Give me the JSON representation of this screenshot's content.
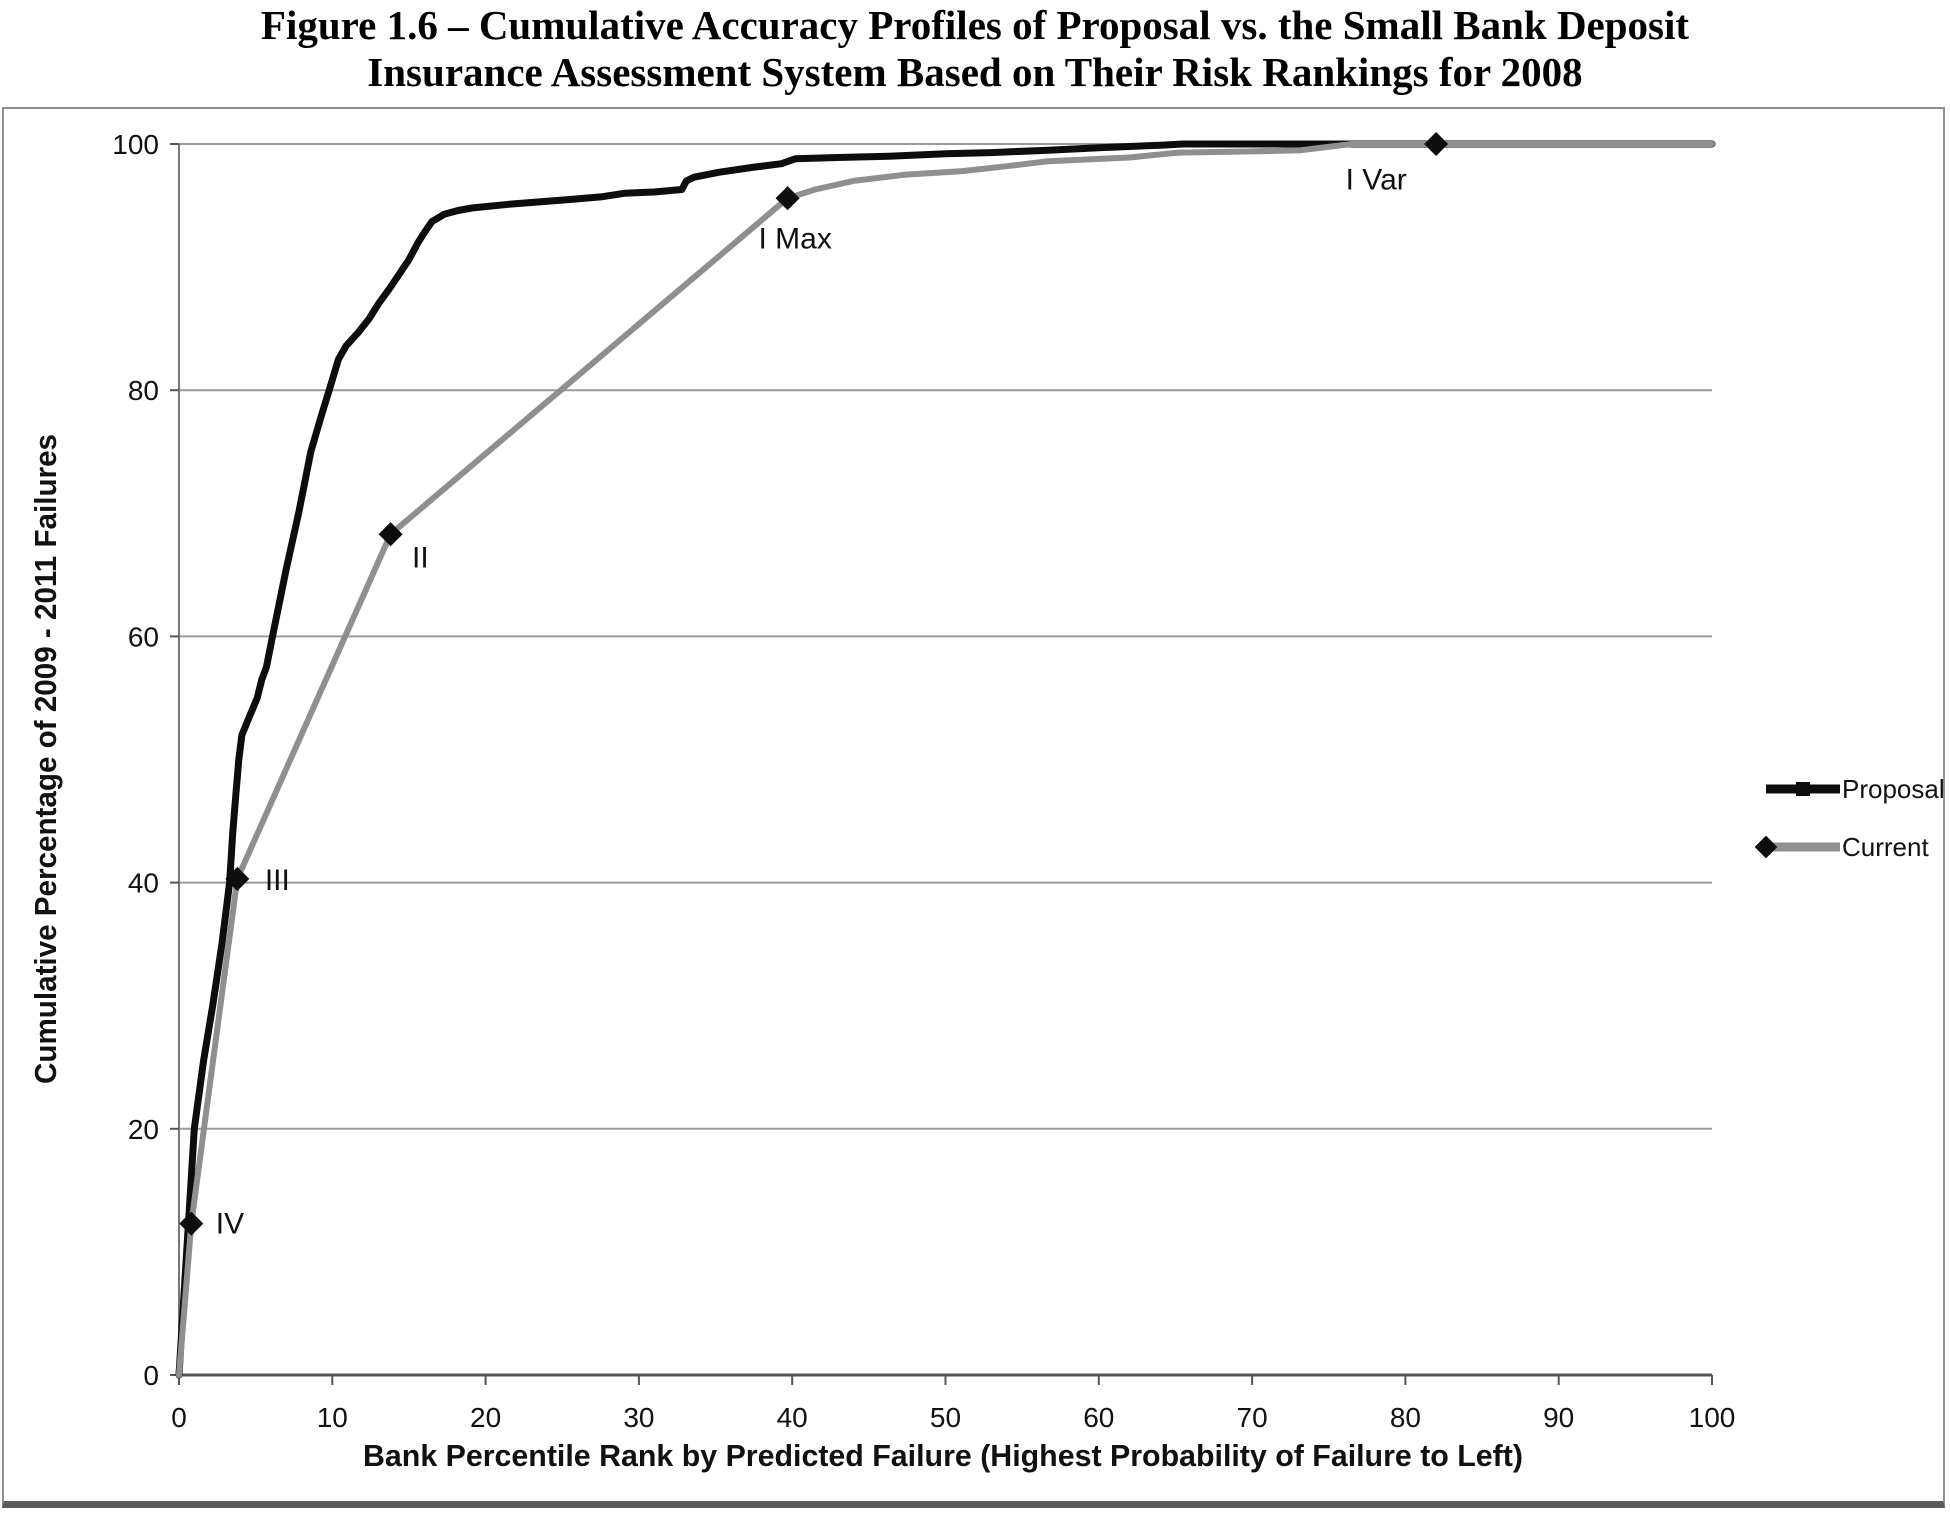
{
  "figure": {
    "title_line1": "Figure 1.6 – Cumulative Accuracy Profiles of Proposal vs. the Small Bank Deposit",
    "title_line2": "Insurance Assessment System Based on Their Risk Rankings for 2008"
  },
  "chart_data": {
    "type": "line",
    "title": "Figure 1.6 – Cumulative Accuracy Profiles of Proposal vs. the Small Bank Deposit Insurance Assessment System Based on Their Risk Rankings for 2008",
    "xlabel": "Bank Percentile Rank by Predicted Failure (Highest Probability of Failure to Left)",
    "ylabel": "Cumulative Percentage of 2009 - 2011 Failures",
    "xlim": [
      0,
      100
    ],
    "ylim": [
      0,
      100
    ],
    "x_ticks": [
      0,
      10,
      20,
      30,
      40,
      50,
      60,
      70,
      80,
      90,
      100
    ],
    "y_ticks": [
      0,
      20,
      40,
      60,
      80,
      100
    ],
    "grid": "horizontal-only",
    "legend_position": "right-outside",
    "colors": {
      "proposal": "#0d0d0d",
      "current": "#8f8f8f",
      "grid": "#9a9a9a",
      "axis": "#555555",
      "marker": "#0d0d0d"
    },
    "series": [
      {
        "name": "Proposal",
        "color_key": "proposal",
        "stroke_width": 7,
        "marker": "none",
        "points": [
          [
            0,
            0
          ],
          [
            0.3,
            6
          ],
          [
            0.6,
            12
          ],
          [
            1,
            20
          ],
          [
            1.6,
            25.5
          ],
          [
            2.2,
            30
          ],
          [
            2.8,
            35
          ],
          [
            3.3,
            40
          ],
          [
            3.5,
            44
          ],
          [
            3.7,
            47
          ],
          [
            3.9,
            50
          ],
          [
            4.1,
            52
          ],
          [
            4.6,
            53.5
          ],
          [
            5.1,
            55
          ],
          [
            5.4,
            56.5
          ],
          [
            5.7,
            57.5
          ],
          [
            6.1,
            60
          ],
          [
            7,
            65.5
          ],
          [
            7.8,
            70
          ],
          [
            8.6,
            75
          ],
          [
            9.3,
            78
          ],
          [
            9.8,
            80
          ],
          [
            10.4,
            82.5
          ],
          [
            10.9,
            83.6
          ],
          [
            11.7,
            84.7
          ],
          [
            12.4,
            85.8
          ],
          [
            13,
            87
          ],
          [
            13.7,
            88.2
          ],
          [
            14.3,
            89.3
          ],
          [
            15,
            90.6
          ],
          [
            15.6,
            92
          ],
          [
            16,
            92.8
          ],
          [
            16.5,
            93.7
          ],
          [
            17.3,
            94.3
          ],
          [
            18.2,
            94.6
          ],
          [
            19.1,
            94.8
          ],
          [
            21.5,
            95.1
          ],
          [
            23.5,
            95.3
          ],
          [
            25.6,
            95.5
          ],
          [
            27.5,
            95.7
          ],
          [
            29.1,
            96
          ],
          [
            31,
            96.1
          ],
          [
            32.8,
            96.3
          ],
          [
            33.1,
            97
          ],
          [
            33.6,
            97.3
          ],
          [
            35.2,
            97.7
          ],
          [
            37.4,
            98.1
          ],
          [
            39.3,
            98.4
          ],
          [
            40.2,
            98.8
          ],
          [
            43,
            98.9
          ],
          [
            46.3,
            99
          ],
          [
            50,
            99.2
          ],
          [
            53,
            99.3
          ],
          [
            56.7,
            99.5
          ],
          [
            60,
            99.7
          ],
          [
            64,
            99.9
          ],
          [
            65.5,
            100
          ],
          [
            100,
            100
          ]
        ]
      },
      {
        "name": "Current",
        "color_key": "current",
        "stroke_width": 6,
        "marker": "diamond",
        "points": [
          [
            0,
            0
          ],
          [
            0.8,
            12.3
          ],
          [
            3.8,
            40.3
          ],
          [
            13.8,
            68.3
          ],
          [
            39.7,
            95.6
          ],
          [
            41.5,
            96.3
          ],
          [
            44,
            97
          ],
          [
            47.3,
            97.5
          ],
          [
            51.1,
            97.8
          ],
          [
            54,
            98.2
          ],
          [
            56.7,
            98.6
          ],
          [
            62,
            98.9
          ],
          [
            65.2,
            99.3
          ],
          [
            70,
            99.4
          ],
          [
            73.2,
            99.5
          ],
          [
            76.5,
            100
          ],
          [
            100,
            100
          ]
        ],
        "marker_points": [
          {
            "x": 0.8,
            "y": 12.3,
            "label": "IV"
          },
          {
            "x": 3.8,
            "y": 40.3,
            "label": "III"
          },
          {
            "x": 13.8,
            "y": 68.3,
            "label": "II"
          },
          {
            "x": 39.7,
            "y": 95.6,
            "label": "I Max"
          },
          {
            "x": 82,
            "y": 100,
            "label": "I Var"
          }
        ]
      }
    ],
    "point_labels": [
      {
        "text": "IV",
        "x": 2.4,
        "y": 11.5
      },
      {
        "text": "III",
        "x": 5.6,
        "y": 39.4
      },
      {
        "text": "II",
        "x": 15.2,
        "y": 65.6
      },
      {
        "text": "I Max",
        "x": 37.8,
        "y": 91.5
      },
      {
        "text": "I Var",
        "x": 76.1,
        "y": 96.3
      }
    ],
    "legend": [
      {
        "label": "Proposal",
        "swatch": "thick-black-line-with-square-marker"
      },
      {
        "label": "Current",
        "swatch": "gray-line-with-diamond-marker"
      }
    ]
  }
}
